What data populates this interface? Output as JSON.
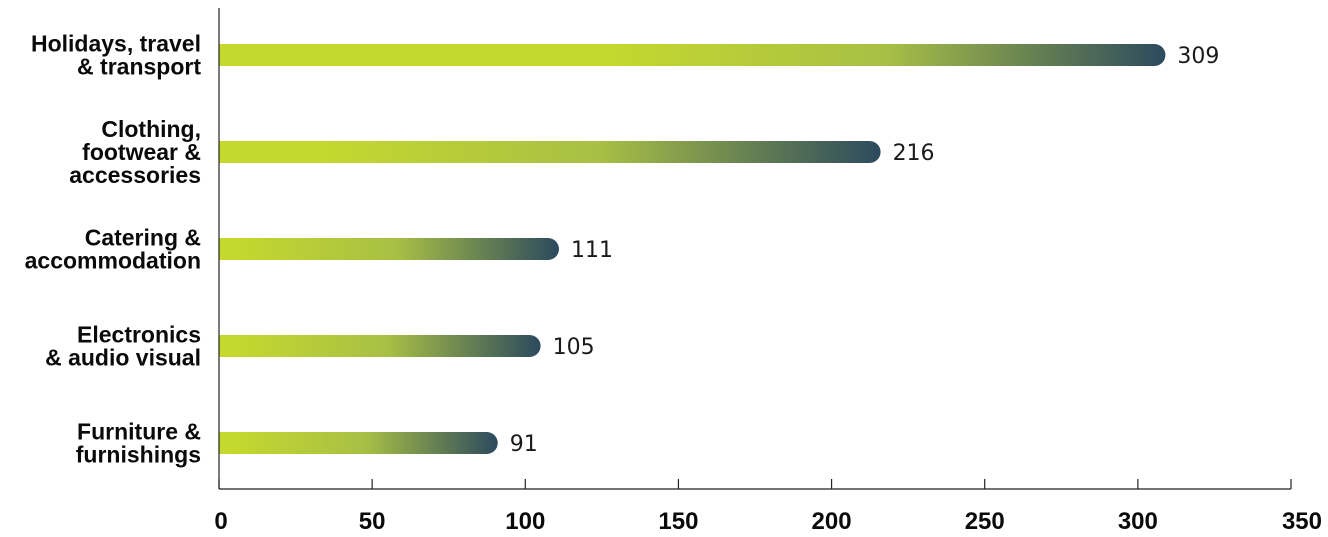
{
  "chart_data": {
    "type": "bar",
    "orientation": "horizontal",
    "categories": [
      [
        "Holidays, travel",
        "& transport"
      ],
      [
        "Clothing,",
        "footwear &",
        "accessories"
      ],
      [
        "Catering &",
        "accommodation"
      ],
      [
        "Electronics",
        "& audio visual"
      ],
      [
        "Furniture &",
        "furnishings"
      ]
    ],
    "values": [
      309,
      216,
      111,
      105,
      91
    ],
    "data_labels": [
      "309",
      "216",
      "111",
      "105",
      "91"
    ],
    "xticks": [
      "0",
      "50",
      "100",
      "150",
      "200",
      "250",
      "300",
      "350"
    ],
    "xlim": [
      0,
      350
    ],
    "grid": false,
    "legend": "none",
    "colors": {
      "bar_start": "#c4d82e",
      "bar_mid": "#a8bf45",
      "bar_end": "#2c4a5e",
      "axis": "#222222",
      "text": "#0a0a0a"
    }
  }
}
